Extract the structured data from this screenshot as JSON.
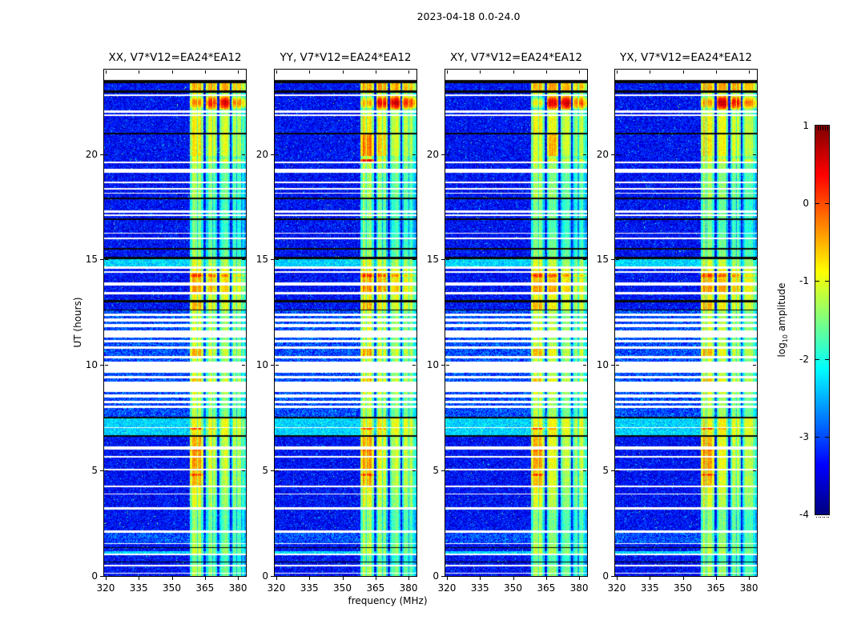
{
  "title": "2023-04-18 0.0-24.0",
  "chart_data": {
    "type": "heatmap",
    "title": "2023-04-18 0.0-24.0",
    "panels": [
      {
        "id": "XX",
        "title": "XX, V7*V12=EA24*EA12"
      },
      {
        "id": "YY",
        "title": "YY, V7*V12=EA24*EA12"
      },
      {
        "id": "XY",
        "title": "XY, V7*V12=EA24*EA12"
      },
      {
        "id": "YX",
        "title": "YX, V7*V12=EA24*EA12"
      }
    ],
    "x_axis": {
      "label": "frequency (MHz)",
      "ticks": [
        320,
        335,
        350,
        365,
        380
      ],
      "lim": [
        319.3,
        383.6
      ]
    },
    "y_axis": {
      "label": "UT (hours)",
      "ticks": [
        0,
        5,
        10,
        15,
        20
      ],
      "lim": [
        0,
        24
      ]
    },
    "colorbar": {
      "label_prefix": "log",
      "label_sub": "10",
      "label_suffix": " amplitude",
      "ticks": [
        1,
        0,
        -1,
        -2,
        -3,
        -4
      ],
      "lim": [
        -4,
        1
      ],
      "colormap": "jet"
    },
    "background_log_amplitude": -3.35,
    "rfi_subbands_mhz": [
      [
        358.3,
        364.2
      ],
      [
        365.4,
        370.6
      ],
      [
        371.6,
        376.3
      ],
      [
        377.0,
        383.6
      ]
    ],
    "segment_format": "[t_start_hr, t_end_hr, row_type, band_log_amp_or_sub_levels]; row_type: n=blue noise, n2=brighter striped noise, c=bright cyan row, w=white data gap, k=black line",
    "timeline": [
      [
        0.0,
        0.1,
        "n",
        -1.3
      ],
      [
        0.1,
        0.15,
        "w",
        null
      ],
      [
        0.15,
        0.45,
        "n",
        -1.25
      ],
      [
        0.45,
        0.52,
        "w",
        null
      ],
      [
        0.52,
        0.63,
        "n",
        -1.5
      ],
      [
        0.63,
        0.67,
        "k",
        null
      ],
      [
        0.67,
        1.0,
        "n",
        -1.6
      ],
      [
        1.0,
        1.06,
        "w",
        null
      ],
      [
        1.06,
        1.16,
        "c",
        -1.1
      ],
      [
        1.16,
        1.31,
        "n",
        -1.15
      ],
      [
        1.31,
        1.37,
        "k",
        null
      ],
      [
        1.37,
        1.51,
        "n",
        -1.2
      ],
      [
        1.51,
        1.57,
        "w",
        null
      ],
      [
        1.57,
        2.06,
        "n2",
        -1.3
      ],
      [
        2.06,
        2.16,
        "w",
        null
      ],
      [
        2.16,
        3.16,
        "n",
        -1.4
      ],
      [
        3.16,
        3.26,
        "w",
        null
      ],
      [
        3.26,
        3.86,
        "n",
        [
          -1.0,
          -1.3,
          -1.45,
          -1.5
        ]
      ],
      [
        3.86,
        3.92,
        "w",
        null
      ],
      [
        3.92,
        4.21,
        "n",
        [
          -0.9,
          -1.2,
          -1.4,
          -1.45
        ]
      ],
      [
        4.21,
        4.29,
        "w",
        null
      ],
      [
        4.29,
        4.74,
        "n",
        [
          -0.55,
          -1.1,
          -1.3,
          -1.35
        ]
      ],
      [
        4.74,
        4.86,
        "n",
        [
          0.2,
          -1.0,
          -1.25,
          -1.3
        ]
      ],
      [
        4.86,
        5.01,
        "n",
        [
          -0.6,
          -1.1,
          -1.3,
          -1.4
        ]
      ],
      [
        5.01,
        5.09,
        "w",
        null
      ],
      [
        5.09,
        5.61,
        "n",
        [
          -0.4,
          -1.0,
          -1.2,
          -1.3
        ]
      ],
      [
        5.61,
        5.67,
        "w",
        null
      ],
      [
        5.67,
        5.93,
        "n",
        [
          -0.35,
          -1.0,
          -1.2,
          -1.3
        ]
      ],
      [
        5.93,
        6.0,
        "n",
        [
          -0.15,
          -0.9,
          -1.15,
          -1.3
        ]
      ],
      [
        6.0,
        6.13,
        "w",
        null
      ],
      [
        6.13,
        6.61,
        "n",
        [
          -0.5,
          -1.05,
          -1.25,
          -1.3
        ]
      ],
      [
        6.61,
        6.69,
        "k",
        null
      ],
      [
        6.69,
        6.92,
        "c",
        [
          -0.8,
          -0.9,
          -1.0,
          -1.1
        ]
      ],
      [
        6.92,
        7.0,
        "c",
        [
          0.15,
          -0.5,
          -0.9,
          -1.0
        ]
      ],
      [
        7.0,
        7.07,
        "w",
        null
      ],
      [
        7.07,
        7.46,
        "c",
        [
          -0.9,
          -0.9,
          -1.0,
          -1.1
        ]
      ],
      [
        7.46,
        7.53,
        "k",
        null
      ],
      [
        7.53,
        7.96,
        "n2",
        -1.2
      ],
      [
        7.96,
        8.06,
        "w",
        null
      ],
      [
        8.06,
        8.19,
        "n2",
        -1.15
      ],
      [
        8.19,
        8.31,
        "w",
        null
      ],
      [
        8.31,
        8.46,
        "n2",
        -1.2
      ],
      [
        8.46,
        8.59,
        "w",
        null
      ],
      [
        8.59,
        8.73,
        "n2",
        -1.0
      ],
      [
        8.73,
        9.21,
        "w",
        null
      ],
      [
        9.21,
        9.36,
        "n2",
        [
          -0.6,
          -1.0,
          -1.2,
          -1.3
        ]
      ],
      [
        9.36,
        9.49,
        "w",
        null
      ],
      [
        9.49,
        9.63,
        "n2",
        -1.1
      ],
      [
        9.63,
        10.17,
        "w",
        null
      ],
      [
        10.17,
        10.31,
        "n2",
        -1.1
      ],
      [
        10.31,
        10.43,
        "w",
        null
      ],
      [
        10.43,
        10.76,
        "n2",
        [
          -0.5,
          -1.0,
          -1.2,
          -1.3
        ]
      ],
      [
        10.76,
        10.89,
        "w",
        null
      ],
      [
        10.89,
        11.06,
        "n2",
        -1.1
      ],
      [
        11.06,
        11.19,
        "w",
        null
      ],
      [
        11.19,
        11.31,
        "n2",
        -1.15
      ],
      [
        11.31,
        11.63,
        "w",
        null
      ],
      [
        11.63,
        11.81,
        "n2",
        -1.0
      ],
      [
        11.81,
        11.93,
        "w",
        null
      ],
      [
        11.93,
        12.07,
        "n2",
        -1.1
      ],
      [
        12.07,
        12.19,
        "w",
        null
      ],
      [
        12.19,
        12.33,
        "n2",
        -1.15
      ],
      [
        12.33,
        12.45,
        "w",
        null
      ],
      [
        12.45,
        12.59,
        "n2",
        -1.1
      ],
      [
        12.59,
        12.63,
        "k",
        null
      ],
      [
        12.63,
        12.96,
        "n",
        [
          -0.5,
          -0.9,
          -1.1,
          -1.2
        ]
      ],
      [
        12.96,
        13.09,
        "k",
        null
      ],
      [
        13.09,
        13.36,
        "n",
        [
          -0.9,
          -1.0,
          -1.1,
          -1.2
        ]
      ],
      [
        13.36,
        13.46,
        "w",
        null
      ],
      [
        13.46,
        13.76,
        "n",
        [
          -0.35,
          -0.5,
          -0.7,
          -1.0
        ]
      ],
      [
        13.76,
        13.91,
        "w",
        null
      ],
      [
        13.91,
        14.11,
        "n",
        [
          -0.5,
          -0.6,
          -0.8,
          -1.0
        ]
      ],
      [
        14.11,
        14.36,
        "n",
        [
          0.15,
          -0.1,
          -0.35,
          -0.8
        ]
      ],
      [
        14.36,
        14.43,
        "w",
        null
      ],
      [
        14.43,
        14.56,
        "n",
        [
          -0.8,
          -0.9,
          -1.0,
          -1.1
        ]
      ],
      [
        14.56,
        14.66,
        "w",
        null
      ],
      [
        14.66,
        15.01,
        "c",
        -1.0
      ],
      [
        15.01,
        15.11,
        "k",
        null
      ],
      [
        15.11,
        15.46,
        "n",
        -1.35
      ],
      [
        15.46,
        15.56,
        "k",
        null
      ],
      [
        15.56,
        15.97,
        "n",
        -1.45
      ],
      [
        15.97,
        16.04,
        "w",
        null
      ],
      [
        16.04,
        16.22,
        "n",
        -1.5
      ],
      [
        16.22,
        16.28,
        "w",
        null
      ],
      [
        16.28,
        16.86,
        "n",
        -1.6
      ],
      [
        16.86,
        16.93,
        "k",
        null
      ],
      [
        16.93,
        17.07,
        "n",
        -1.4
      ],
      [
        17.07,
        17.13,
        "w",
        null
      ],
      [
        17.13,
        17.23,
        "n",
        -1.4
      ],
      [
        17.23,
        17.34,
        "w",
        null
      ],
      [
        17.34,
        17.86,
        "n",
        -1.5
      ],
      [
        17.86,
        17.93,
        "k",
        null
      ],
      [
        17.93,
        18.11,
        "n",
        -1.2
      ],
      [
        18.11,
        18.17,
        "w",
        null
      ],
      [
        18.17,
        18.33,
        "n",
        -1.3
      ],
      [
        18.33,
        18.39,
        "w",
        null
      ],
      [
        18.39,
        18.62,
        "n",
        -1.3
      ],
      [
        18.62,
        18.68,
        "w",
        null
      ],
      [
        18.68,
        19.11,
        "n",
        -1.35
      ],
      [
        19.11,
        19.31,
        "w",
        null
      ],
      [
        19.31,
        19.56,
        "n",
        -1.2
      ],
      [
        19.56,
        19.63,
        "w",
        null
      ],
      [
        19.63,
        19.75,
        "n",
        [
          -0.9,
          -1.0,
          -1.1,
          -1.2
        ]
      ],
      [
        19.75,
        19.91,
        "n",
        -1.1
      ],
      [
        19.91,
        20.93,
        "n",
        [
          -0.8,
          -0.95,
          -1.1,
          -1.3
        ]
      ],
      [
        20.93,
        21.0,
        "k",
        null
      ],
      [
        21.0,
        21.81,
        "n",
        [
          -0.85,
          -1.0,
          -1.15,
          -1.3
        ]
      ],
      [
        21.81,
        21.89,
        "w",
        null
      ],
      [
        21.89,
        21.97,
        "n",
        -1.1
      ],
      [
        21.97,
        22.05,
        "w",
        null
      ],
      [
        22.05,
        22.11,
        "n",
        -1.1
      ],
      [
        22.11,
        22.76,
        "n",
        [
          -0.25,
          0.3,
          0.45,
          -0.35
        ]
      ],
      [
        22.76,
        22.83,
        "w",
        null
      ],
      [
        22.83,
        22.91,
        "n",
        -1.0
      ],
      [
        22.91,
        23.01,
        "k",
        null
      ],
      [
        23.01,
        23.34,
        "n",
        [
          -0.5,
          -0.45,
          -0.5,
          -0.7
        ]
      ],
      [
        23.34,
        23.51,
        "k",
        null
      ],
      [
        23.51,
        24.0,
        "w",
        null
      ]
    ],
    "panel_band_overrides": [
      {
        "panel": "XX",
        "t0": 22.11,
        "t1": 22.76,
        "subs": [
          -0.25,
          0.3,
          0.45,
          -0.35
        ]
      },
      {
        "panel": "YY",
        "t0": 22.11,
        "t1": 22.76,
        "subs": [
          -0.5,
          0.35,
          0.55,
          0.05
        ]
      },
      {
        "panel": "XY",
        "t0": 22.11,
        "t1": 22.76,
        "subs": [
          -0.85,
          0.45,
          0.6,
          -0.15
        ]
      },
      {
        "panel": "YX",
        "t0": 22.11,
        "t1": 22.76,
        "subs": [
          -0.35,
          0.6,
          0.25,
          -0.3
        ]
      },
      {
        "panel": "YY",
        "t0": 19.63,
        "t1": 19.75,
        "subs": [
          0.55,
          -0.7,
          -1.1,
          -1.3
        ]
      },
      {
        "panel": "YY",
        "t0": 19.91,
        "t1": 20.93,
        "subs": [
          -0.25,
          -0.7,
          -1.15,
          -1.35
        ]
      },
      {
        "panel": "XY",
        "t0": 19.91,
        "t1": 20.93,
        "subs": [
          -1.05,
          -0.55,
          -1.15,
          -1.35
        ]
      }
    ]
  }
}
